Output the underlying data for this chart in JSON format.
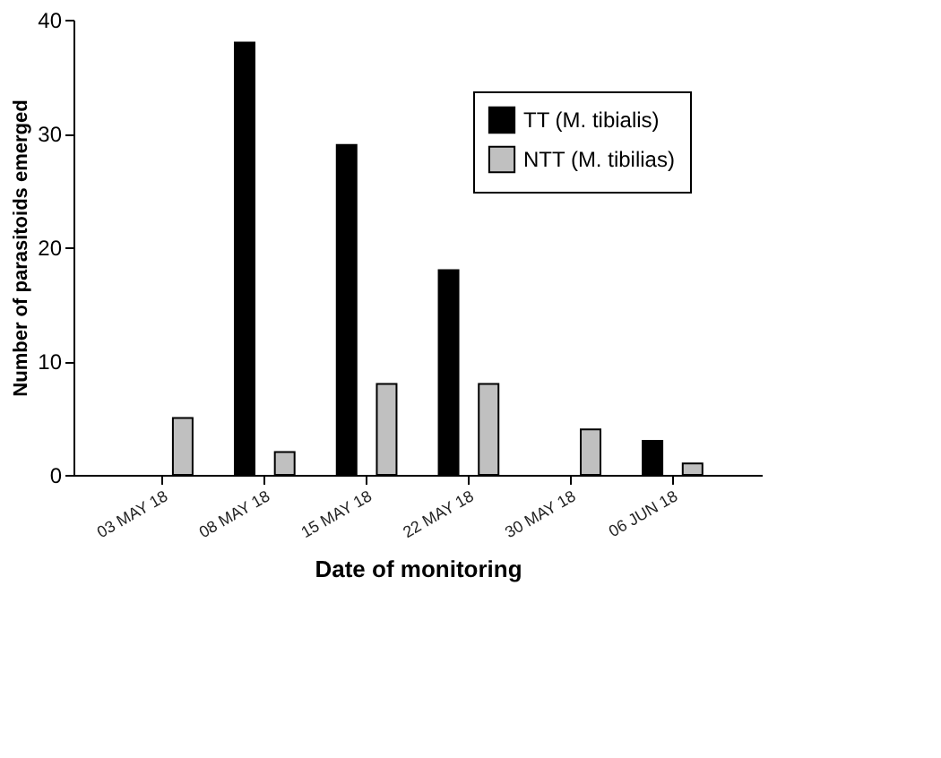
{
  "chart_data": {
    "type": "bar",
    "xlabel": "Date of monitoring",
    "ylabel": "Number of parasitoids emerged",
    "categories": [
      "03 MAY 18",
      "08 MAY 18",
      "15 MAY 18",
      "22 MAY 18",
      "30 MAY 18",
      "06 JUN 18"
    ],
    "series": [
      {
        "name": "TT (M. tibialis)",
        "color": "#000000",
        "values": [
          null,
          38,
          29,
          18,
          null,
          3
        ]
      },
      {
        "name": "NTT (M. tibilias)",
        "color": "#c0c0c0",
        "values": [
          5,
          2,
          8,
          8,
          4,
          1
        ]
      }
    ],
    "ylim": [
      0,
      40
    ],
    "yticks": [
      0,
      10,
      20,
      30,
      40
    ],
    "grid": false,
    "legend": "top right"
  }
}
